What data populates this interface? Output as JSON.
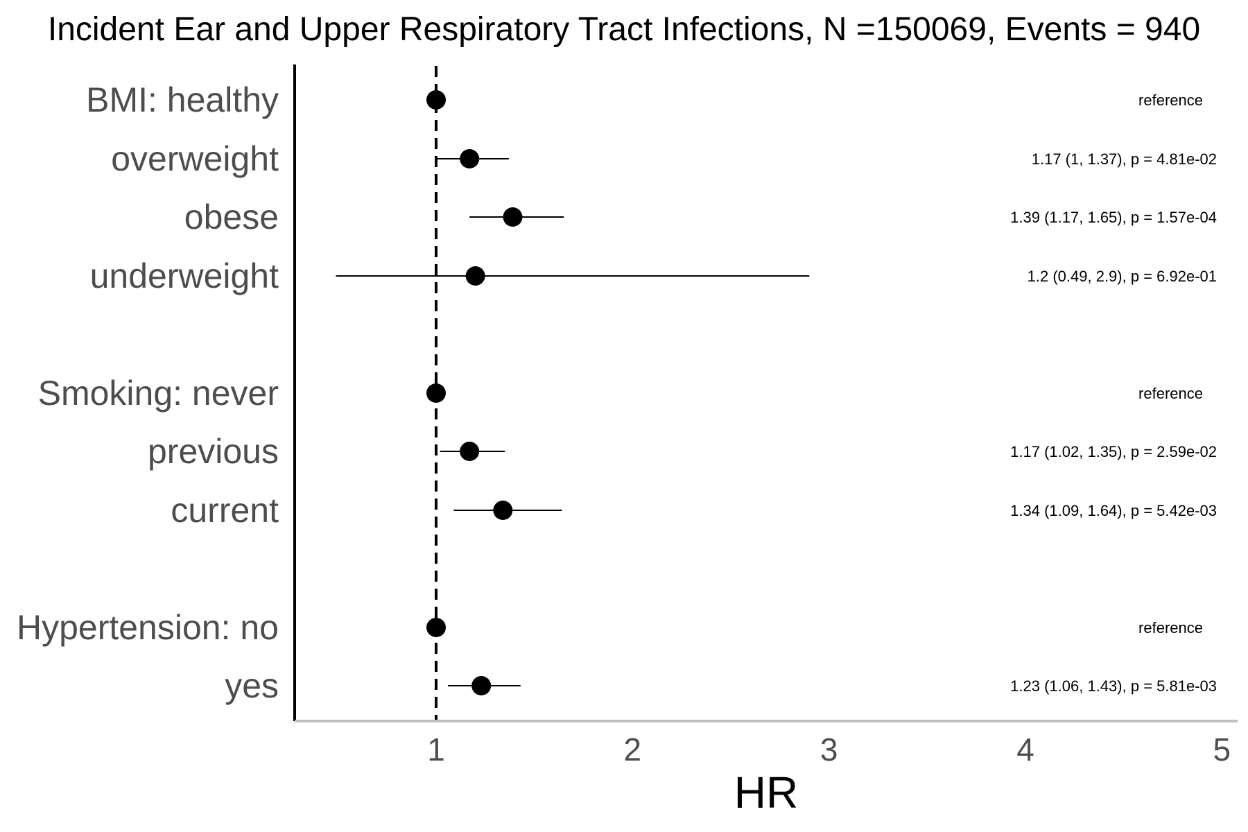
{
  "chart_data": {
    "type": "scatter",
    "subtype": "forest-plot",
    "title": "Incident Ear and Upper Respiratory Tract Infections, N =150069, Events = 940",
    "xlabel": "HR",
    "ylabel": "",
    "xlim": [
      0.28,
      5.08
    ],
    "xticks": [
      1,
      2,
      3,
      4,
      5
    ],
    "reference_line": 1,
    "grid": false,
    "legend": "none",
    "colors": {
      "point": "#000000",
      "ci": "#000000",
      "ref_line": "#000000",
      "label_text": "#4d4d4d",
      "x_axis": "#bfbfbf",
      "y_axis": "#000000"
    },
    "rows": [
      {
        "label": "BMI: healthy",
        "hr": 1,
        "lower": null,
        "upper": null,
        "annotation": "reference"
      },
      {
        "label": "overweight",
        "hr": 1.17,
        "lower": 1,
        "upper": 1.37,
        "annotation": "1.17 (1, 1.37), p = 4.81e-02"
      },
      {
        "label": "obese",
        "hr": 1.39,
        "lower": 1.17,
        "upper": 1.65,
        "annotation": "1.39 (1.17, 1.65), p = 1.57e-04"
      },
      {
        "label": "underweight",
        "hr": 1.2,
        "lower": 0.49,
        "upper": 2.9,
        "annotation": "1.2 (0.49, 2.9), p = 6.92e-01"
      },
      {
        "label": "Smoking: never",
        "hr": 1,
        "lower": null,
        "upper": null,
        "annotation": "reference"
      },
      {
        "label": "previous",
        "hr": 1.17,
        "lower": 1.02,
        "upper": 1.35,
        "annotation": "1.17 (1.02, 1.35), p = 2.59e-02"
      },
      {
        "label": "current",
        "hr": 1.34,
        "lower": 1.09,
        "upper": 1.64,
        "annotation": "1.34 (1.09, 1.64), p = 5.42e-03"
      },
      {
        "label": "Hypertension: no",
        "hr": 1,
        "lower": null,
        "upper": null,
        "annotation": "reference"
      },
      {
        "label": "yes",
        "hr": 1.23,
        "lower": 1.06,
        "upper": 1.43,
        "annotation": "1.23 (1.06, 1.43), p = 5.81e-03"
      }
    ]
  }
}
